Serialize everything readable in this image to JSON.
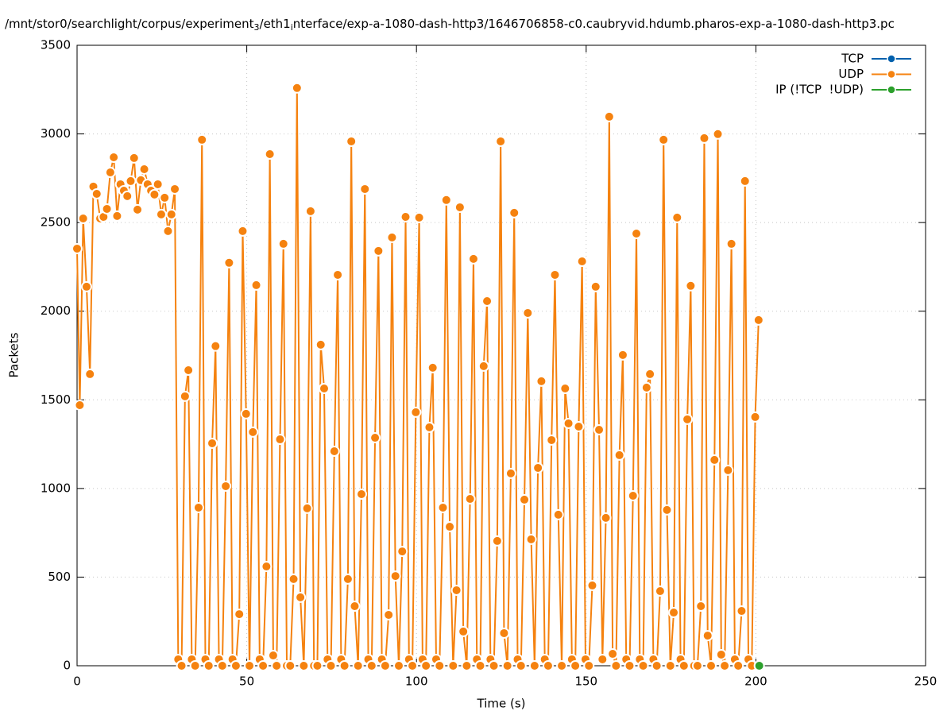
{
  "chart_data": {
    "type": "line",
    "title": [
      "/mnt/stor0/searchlight/corpus/experiment",
      "3",
      "/eth1",
      "i",
      "nterface/exp-a-1080-dash-http3/1646706858-c0.caubryvid.hdumb.pharos-exp-a-1080-dash-http3.pc"
    ],
    "xlabel": "Time (s)",
    "ylabel": "Packets",
    "xlim": [
      0,
      250
    ],
    "xticks": [
      0,
      50,
      100,
      150,
      200,
      250
    ],
    "ylim": [
      0,
      3500
    ],
    "yticks": [
      0,
      500,
      1000,
      1500,
      2000,
      2500,
      3000,
      3500
    ],
    "grid": true,
    "legend": "top-right",
    "series": [
      {
        "name": "TCP",
        "color": "#0060ad",
        "x": [],
        "values": []
      },
      {
        "name": "UDP",
        "color": "#f5820f",
        "x": [
          0,
          0.8,
          1.8,
          2.8,
          3.8,
          4.8,
          5.8,
          6.8,
          7.8,
          8.8,
          9.8,
          10.8,
          11.8,
          12.8,
          13.8,
          14.8,
          15.8,
          16.8,
          17.8,
          18.8,
          19.8,
          20.8,
          21.8,
          22.8,
          23.8,
          24.8,
          25.8,
          26.8,
          27.8,
          28.8,
          29.8,
          30.8,
          31.8,
          32.8,
          33.8,
          34.8,
          35.8,
          36.8,
          37.8,
          38.8,
          39.8,
          40.8,
          41.8,
          42.8,
          43.8,
          44.8,
          45.8,
          46.8,
          47.8,
          48.8,
          49.8,
          50.8,
          51.8,
          52.8,
          53.8,
          54.8,
          55.8,
          56.8,
          57.8,
          58.8,
          59.8,
          60.8,
          61.8,
          62.8,
          63.8,
          64.8,
          65.8,
          66.8,
          67.8,
          68.8,
          69.8,
          70.8,
          71.8,
          72.8,
          73.8,
          74.8,
          75.8,
          76.8,
          77.8,
          78.8,
          79.8,
          80.8,
          81.8,
          82.8,
          83.8,
          84.8,
          85.8,
          86.8,
          87.8,
          88.8,
          89.8,
          90.8,
          91.8,
          92.8,
          93.8,
          94.8,
          95.8,
          96.8,
          97.8,
          98.8,
          99.8,
          100.8,
          101.8,
          102.8,
          103.8,
          104.8,
          105.8,
          106.8,
          107.8,
          108.8,
          109.8,
          110.8,
          111.8,
          112.8,
          113.8,
          114.8,
          115.8,
          116.8,
          117.8,
          118.8,
          119.8,
          120.8,
          121.8,
          122.8,
          123.8,
          124.8,
          125.8,
          126.8,
          127.8,
          128.8,
          129.8,
          130.8,
          131.8,
          132.8,
          133.8,
          134.8,
          135.8,
          136.8,
          137.8,
          138.8,
          139.8,
          140.8,
          141.8,
          142.8,
          143.8,
          144.8,
          145.8,
          146.8,
          147.8,
          148.8,
          149.8,
          150.8,
          151.8,
          152.8,
          153.8,
          154.8,
          155.8,
          156.8,
          157.8,
          158.8,
          159.8,
          160.8,
          161.8,
          162.8,
          163.8,
          164.8,
          165.8,
          166.8,
          167.8,
          168.8,
          169.8,
          170.8,
          171.8,
          172.8,
          173.8,
          174.8,
          175.8,
          176.8,
          177.8,
          178.8,
          179.8,
          180.8,
          181.8,
          182.8,
          183.8,
          184.8,
          185.8,
          186.8,
          187.8,
          188.8,
          189.8,
          190.8,
          191.8,
          192.8,
          193.8,
          194.8,
          195.8,
          196.8,
          197.8,
          198.8,
          199.8,
          200.8
        ],
        "values": [
          2353,
          1470,
          2523,
          2138,
          1645,
          2703,
          2662,
          2523,
          2532,
          2577,
          2783,
          2868,
          2537,
          2716,
          2680,
          2649,
          2734,
          2864,
          2573,
          2739,
          2801,
          2716,
          2680,
          2658,
          2716,
          2546,
          2640,
          2452,
          2546,
          2689,
          36,
          0,
          1520,
          1667,
          36,
          0,
          892,
          2967,
          36,
          0,
          1255,
          1803,
          36,
          0,
          1013,
          2273,
          36,
          0,
          291,
          2452,
          1421,
          0,
          1318,
          2147,
          36,
          0,
          560,
          2886,
          58,
          0,
          1277,
          2380,
          0,
          0,
          489,
          3259,
          386,
          0,
          888,
          2564,
          0,
          0,
          1811,
          1564,
          36,
          0,
          1210,
          2205,
          36,
          0,
          489,
          2958,
          336,
          0,
          968,
          2689,
          36,
          0,
          1286,
          2340,
          36,
          0,
          287,
          2416,
          506,
          0,
          645,
          2532,
          36,
          0,
          1430,
          2528,
          36,
          0,
          1345,
          1681,
          36,
          0,
          892,
          2627,
          784,
          0,
          426,
          2586,
          193,
          0,
          941,
          2295,
          36,
          0,
          1690,
          2057,
          36,
          0,
          704,
          2958,
          184,
          0,
          1085,
          2555,
          36,
          0,
          937,
          1990,
          713,
          0,
          1116,
          1605,
          36,
          0,
          1273,
          2205,
          852,
          0,
          1564,
          1367,
          36,
          0,
          1349,
          2281,
          36,
          0,
          453,
          2138,
          1331,
          36,
          834,
          3097,
          67,
          0,
          1188,
          1753,
          36,
          0,
          959,
          2438,
          36,
          0,
          1569,
          1645,
          36,
          0,
          421,
          2967,
          879,
          0,
          300,
          2528,
          36,
          0,
          1390,
          2143,
          0,
          0,
          336,
          2976,
          170,
          0,
          1161,
          2999,
          63,
          0,
          1103,
          2380,
          36,
          0,
          309,
          2734,
          36,
          0,
          1403,
          1950
        ]
      },
      {
        "name": "IP (!TCP  !UDP)",
        "color": "#2ca02c",
        "x": [
          201
        ],
        "values": [
          0
        ]
      }
    ]
  }
}
